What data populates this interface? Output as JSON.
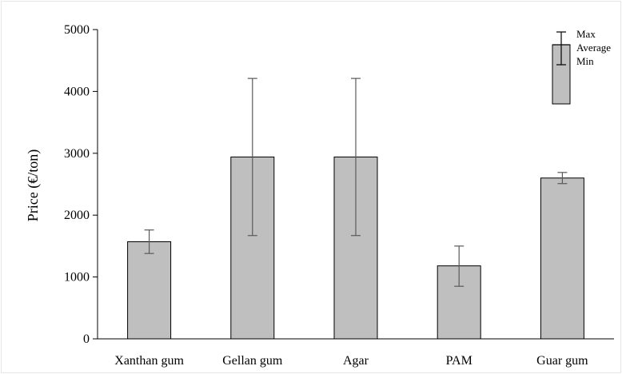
{
  "chart_data": {
    "type": "bar",
    "title": "",
    "xlabel": "",
    "ylabel": "Price (€/ton)",
    "ylim": [
      0,
      5000
    ],
    "yticks": [
      0,
      1000,
      2000,
      3000,
      4000,
      5000
    ],
    "grid": false,
    "categories": [
      "Xanthan gum",
      "Gellan gum",
      "Agar",
      "PAM",
      "Guar gum"
    ],
    "series": [
      {
        "values": [
          1570,
          2940,
          2940,
          1180,
          2600
        ],
        "min": [
          1380,
          1670,
          1670,
          850,
          2510
        ],
        "max": [
          1760,
          4210,
          4210,
          1500,
          2690
        ]
      }
    ],
    "bar_color": "#bfbfbf",
    "bar_edge_color": "#000000",
    "errorbar_color": "#595959",
    "legend": {
      "position": "top-right",
      "max_label": "Max",
      "average_label": "Average",
      "min_label": "Min"
    }
  }
}
